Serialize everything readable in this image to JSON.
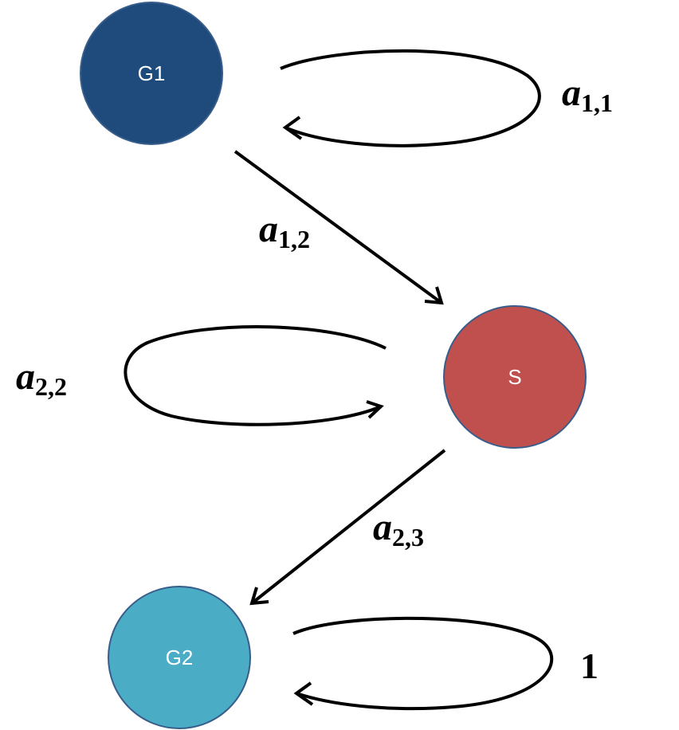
{
  "colors": {
    "g1_fill": "#1F4A7C",
    "s_fill": "#C0504D",
    "g2_fill": "#4BACC6",
    "node_stroke": "#385D8A",
    "edge": "#000000"
  },
  "nodes": {
    "g1": {
      "label": "G1"
    },
    "s": {
      "label": "S"
    },
    "g2": {
      "label": "G2"
    }
  },
  "edges": {
    "g1_self": {
      "main": "a",
      "sub": "1,1"
    },
    "g1_to_s": {
      "main": "a",
      "sub": "1,2"
    },
    "s_self": {
      "main": "a",
      "sub": "2,2"
    },
    "s_to_g2": {
      "main": "a",
      "sub": "2,3"
    },
    "g2_self": {
      "label": "1"
    }
  }
}
